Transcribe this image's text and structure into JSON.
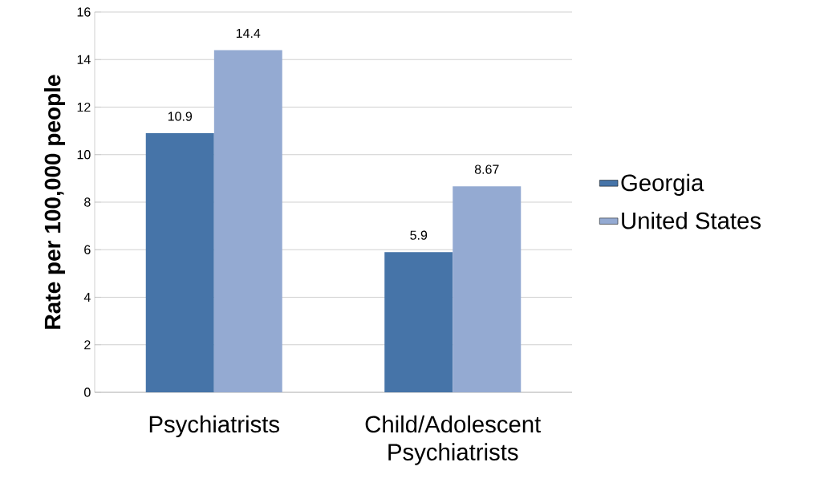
{
  "chart_data": {
    "type": "bar",
    "ylabel": "Rate per 100,000 people",
    "categories": [
      "Psychiatrists",
      "Child/Adolescent Psychiatrists"
    ],
    "series": [
      {
        "name": "Georgia",
        "color": "#4674a8",
        "values": [
          10.9,
          5.9
        ]
      },
      {
        "name": "United States",
        "color": "#94aad2",
        "values": [
          14.4,
          8.67
        ]
      }
    ],
    "ylim": [
      0,
      16
    ],
    "yticks": [
      0,
      2,
      4,
      6,
      8,
      10,
      12,
      14,
      16
    ],
    "grid": "y",
    "legend": "right",
    "data_labels": true
  }
}
